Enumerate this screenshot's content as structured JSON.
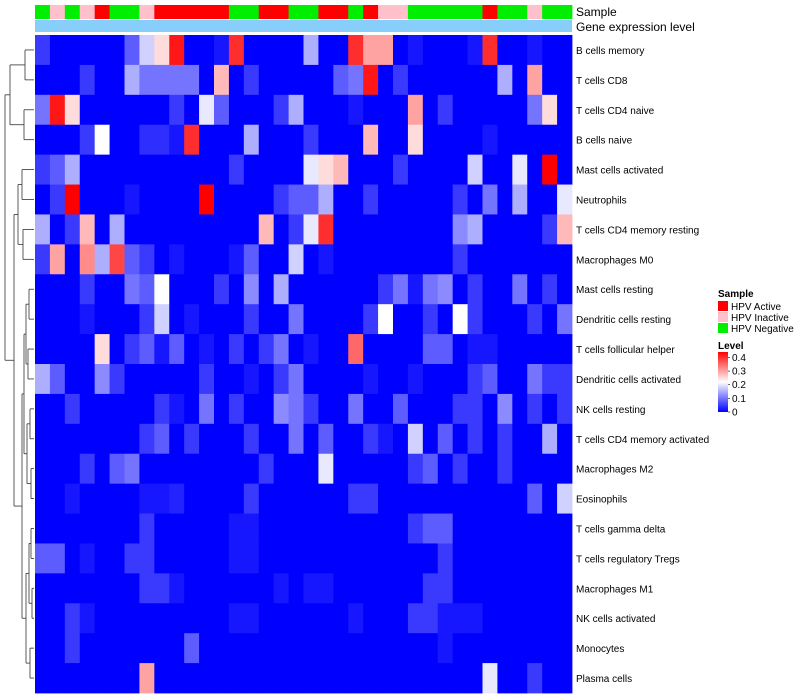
{
  "chart_data": {
    "type": "heatmap",
    "annotation_labels": [
      "Sample",
      "Gene expression level"
    ],
    "sample_groups": [
      "HPV Negative",
      "HPV Inactive",
      "HPV Negative",
      "HPV Inactive",
      "HPV Active",
      "HPV Negative",
      "HPV Negative",
      "HPV Inactive",
      "HPV Active",
      "HPV Active",
      "HPV Active",
      "HPV Active",
      "HPV Active",
      "HPV Negative",
      "HPV Negative",
      "HPV Active",
      "HPV Active",
      "HPV Negative",
      "HPV Negative",
      "HPV Active",
      "HPV Active",
      "HPV Negative",
      "HPV Active",
      "HPV Inactive",
      "HPV Inactive",
      "HPV Negative",
      "HPV Negative",
      "HPV Negative",
      "HPV Negative",
      "HPV Negative",
      "HPV Active",
      "HPV Negative",
      "HPV Negative",
      "HPV Inactive",
      "HPV Negative",
      "HPV Negative"
    ],
    "rows": [
      "B cells memory",
      "T cells CD8",
      "T cells CD4 naive",
      "B cells naive",
      "Mast cells activated",
      "Neutrophils",
      "T cells CD4 memory resting",
      "Macrophages M0",
      "Mast cells resting",
      "Dendritic cells resting",
      "T cells follicular helper",
      "Dendritic cells activated",
      "NK cells resting",
      "T cells CD4 memory activated",
      "Macrophages M2",
      "Eosinophils",
      "T cells gamma delta",
      "T cells regulatory  Tregs",
      "Macrophages M1",
      "NK cells activated",
      "Monocytes",
      "Plasma cells"
    ],
    "values": [
      [
        0.05,
        0.0,
        0.0,
        0.0,
        0.0,
        0.0,
        0.08,
        0.18,
        0.25,
        0.42,
        0.0,
        0.0,
        0.02,
        0.4,
        0.0,
        0.0,
        0.0,
        0.0,
        0.15,
        0.0,
        0.0,
        0.4,
        0.3,
        0.3,
        0.0,
        0.02,
        0.0,
        0.0,
        0.0,
        0.02,
        0.4,
        0.0,
        0.0,
        0.02,
        0.0,
        0.0
      ],
      [
        0.0,
        0.0,
        0.0,
        0.05,
        0.0,
        0.0,
        0.15,
        0.1,
        0.1,
        0.1,
        0.1,
        0.0,
        0.28,
        0.0,
        0.05,
        0.0,
        0.0,
        0.0,
        0.0,
        0.0,
        0.08,
        0.1,
        0.42,
        0.0,
        0.05,
        0.0,
        0.0,
        0.0,
        0.0,
        0.0,
        0.0,
        0.15,
        0.0,
        0.3,
        0.0,
        0.0
      ],
      [
        0.1,
        0.42,
        0.25,
        0.0,
        0.0,
        0.0,
        0.0,
        0.0,
        0.0,
        0.05,
        0.0,
        0.2,
        0.08,
        0.0,
        0.0,
        0.0,
        0.05,
        0.15,
        0.0,
        0.0,
        0.0,
        0.02,
        0.0,
        0.0,
        0.0,
        0.3,
        0.0,
        0.05,
        0.0,
        0.0,
        0.0,
        0.0,
        0.0,
        0.1,
        0.25,
        0.0
      ],
      [
        0.0,
        0.0,
        0.0,
        0.05,
        0.22,
        0.0,
        0.0,
        0.04,
        0.04,
        0.02,
        0.4,
        0.0,
        0.0,
        0.0,
        0.15,
        0.0,
        0.0,
        0.0,
        0.05,
        0.0,
        0.0,
        0.0,
        0.28,
        0.0,
        0.0,
        0.25,
        0.0,
        0.0,
        0.0,
        0.0,
        0.02,
        0.0,
        0.0,
        0.0,
        0.0,
        0.0
      ],
      [
        0.05,
        0.08,
        0.15,
        0.0,
        0.0,
        0.0,
        0.0,
        0.0,
        0.0,
        0.0,
        0.0,
        0.0,
        0.0,
        0.05,
        0.0,
        0.0,
        0.0,
        0.0,
        0.2,
        0.25,
        0.28,
        0.0,
        0.0,
        0.0,
        0.05,
        0.0,
        0.0,
        0.0,
        0.0,
        0.18,
        0.0,
        0.0,
        0.2,
        0.0,
        0.44,
        0.0
      ],
      [
        0.0,
        0.05,
        0.44,
        0.0,
        0.0,
        0.0,
        0.02,
        0.0,
        0.0,
        0.0,
        0.0,
        0.44,
        0.0,
        0.0,
        0.0,
        0.0,
        0.05,
        0.08,
        0.08,
        0.15,
        0.0,
        0.0,
        0.05,
        0.0,
        0.0,
        0.0,
        0.0,
        0.0,
        0.05,
        0.0,
        0.1,
        0.0,
        0.15,
        0.0,
        0.0,
        0.2
      ],
      [
        0.15,
        0.0,
        0.05,
        0.28,
        0.0,
        0.15,
        0.0,
        0.0,
        0.0,
        0.0,
        0.0,
        0.0,
        0.0,
        0.0,
        0.0,
        0.28,
        0.0,
        0.05,
        0.2,
        0.4,
        0.0,
        0.0,
        0.0,
        0.0,
        0.0,
        0.0,
        0.0,
        0.0,
        0.12,
        0.15,
        0.0,
        0.0,
        0.0,
        0.0,
        0.05,
        0.28
      ],
      [
        0.05,
        0.3,
        0.0,
        0.32,
        0.15,
        0.38,
        0.08,
        0.05,
        0.0,
        0.02,
        0.0,
        0.0,
        0.0,
        0.02,
        0.08,
        0.0,
        0.0,
        0.18,
        0.0,
        0.02,
        0.0,
        0.0,
        0.0,
        0.0,
        0.0,
        0.0,
        0.0,
        0.0,
        0.05,
        0.0,
        0.0,
        0.0,
        0.0,
        0.0,
        0.0,
        0.0
      ],
      [
        0.0,
        0.0,
        0.0,
        0.05,
        0.0,
        0.0,
        0.1,
        0.08,
        0.22,
        0.0,
        0.0,
        0.0,
        0.05,
        0.0,
        0.12,
        0.0,
        0.15,
        0.0,
        0.0,
        0.0,
        0.0,
        0.0,
        0.0,
        0.05,
        0.1,
        0.02,
        0.1,
        0.12,
        0.0,
        0.05,
        0.0,
        0.0,
        0.1,
        0.0,
        0.05,
        0.0
      ],
      [
        0.0,
        0.0,
        0.0,
        0.02,
        0.0,
        0.0,
        0.0,
        0.05,
        0.18,
        0.0,
        0.02,
        0.0,
        0.0,
        0.0,
        0.05,
        0.0,
        0.0,
        0.1,
        0.0,
        0.0,
        0.0,
        0.0,
        0.05,
        0.22,
        0.0,
        0.0,
        0.05,
        0.0,
        0.22,
        0.05,
        0.0,
        0.0,
        0.0,
        0.05,
        0.0,
        0.1
      ],
      [
        0.0,
        0.0,
        0.0,
        0.0,
        0.25,
        0.0,
        0.05,
        0.08,
        0.02,
        0.08,
        0.0,
        0.02,
        0.0,
        0.05,
        0.0,
        0.05,
        0.1,
        0.0,
        0.02,
        0.0,
        0.0,
        0.35,
        0.0,
        0.0,
        0.0,
        0.0,
        0.08,
        0.08,
        0.0,
        0.02,
        0.02,
        0.0,
        0.0,
        0.0,
        0.0,
        0.0
      ],
      [
        0.15,
        0.08,
        0.0,
        0.0,
        0.12,
        0.05,
        0.0,
        0.0,
        0.0,
        0.0,
        0.0,
        0.05,
        0.0,
        0.0,
        0.02,
        0.0,
        0.05,
        0.1,
        0.0,
        0.0,
        0.0,
        0.0,
        0.02,
        0.0,
        0.0,
        0.02,
        0.0,
        0.0,
        0.0,
        0.05,
        0.08,
        0.0,
        0.0,
        0.1,
        0.05,
        0.05
      ],
      [
        0.0,
        0.0,
        0.05,
        0.0,
        0.0,
        0.0,
        0.0,
        0.0,
        0.05,
        0.02,
        0.0,
        0.1,
        0.0,
        0.05,
        0.0,
        0.0,
        0.12,
        0.1,
        0.05,
        0.0,
        0.0,
        0.1,
        0.0,
        0.0,
        0.08,
        0.0,
        0.0,
        0.0,
        0.05,
        0.05,
        0.0,
        0.12,
        0.0,
        0.05,
        0.0,
        0.05
      ],
      [
        0.0,
        0.0,
        0.0,
        0.0,
        0.0,
        0.0,
        0.0,
        0.05,
        0.08,
        0.0,
        0.05,
        0.0,
        0.0,
        0.0,
        0.05,
        0.0,
        0.0,
        0.1,
        0.0,
        0.08,
        0.0,
        0.0,
        0.05,
        0.02,
        0.0,
        0.18,
        0.0,
        0.08,
        0.0,
        0.05,
        0.0,
        0.05,
        0.0,
        0.0,
        0.15,
        0.0
      ],
      [
        0.0,
        0.0,
        0.0,
        0.05,
        0.0,
        0.08,
        0.1,
        0.0,
        0.0,
        0.0,
        0.0,
        0.0,
        0.0,
        0.0,
        0.0,
        0.05,
        0.0,
        0.0,
        0.0,
        0.2,
        0.0,
        0.0,
        0.0,
        0.0,
        0.0,
        0.05,
        0.08,
        0.0,
        0.05,
        0.0,
        0.0,
        0.05,
        0.0,
        0.0,
        0.0,
        0.0
      ],
      [
        0.0,
        0.0,
        0.02,
        0.0,
        0.0,
        0.0,
        0.0,
        0.02,
        0.02,
        0.03,
        0.0,
        0.0,
        0.0,
        0.0,
        0.05,
        0.0,
        0.0,
        0.0,
        0.0,
        0.0,
        0.0,
        0.05,
        0.05,
        0.0,
        0.0,
        0.0,
        0.0,
        0.0,
        0.0,
        0.0,
        0.0,
        0.0,
        0.0,
        0.08,
        0.0,
        0.18
      ],
      [
        0.0,
        0.0,
        0.0,
        0.0,
        0.0,
        0.0,
        0.0,
        0.05,
        0.0,
        0.0,
        0.0,
        0.0,
        0.0,
        0.02,
        0.02,
        0.0,
        0.0,
        0.0,
        0.0,
        0.0,
        0.0,
        0.0,
        0.0,
        0.0,
        0.0,
        0.05,
        0.08,
        0.08,
        0.0,
        0.0,
        0.0,
        0.0,
        0.0,
        0.0,
        0.0,
        0.0
      ],
      [
        0.08,
        0.08,
        0.0,
        0.02,
        0.0,
        0.0,
        0.05,
        0.05,
        0.0,
        0.0,
        0.0,
        0.0,
        0.0,
        0.02,
        0.02,
        0.0,
        0.0,
        0.0,
        0.0,
        0.0,
        0.0,
        0.0,
        0.0,
        0.0,
        0.0,
        0.0,
        0.0,
        0.05,
        0.0,
        0.0,
        0.0,
        0.0,
        0.0,
        0.0,
        0.0,
        0.0
      ],
      [
        0.0,
        0.0,
        0.0,
        0.0,
        0.0,
        0.0,
        0.0,
        0.05,
        0.05,
        0.02,
        0.0,
        0.0,
        0.0,
        0.0,
        0.0,
        0.0,
        0.02,
        0.0,
        0.02,
        0.02,
        0.0,
        0.0,
        0.0,
        0.0,
        0.0,
        0.0,
        0.05,
        0.05,
        0.0,
        0.0,
        0.0,
        0.0,
        0.0,
        0.0,
        0.0,
        0.0
      ],
      [
        0.0,
        0.0,
        0.05,
        0.02,
        0.0,
        0.0,
        0.0,
        0.0,
        0.0,
        0.0,
        0.0,
        0.0,
        0.0,
        0.02,
        0.02,
        0.0,
        0.0,
        0.0,
        0.0,
        0.0,
        0.0,
        0.02,
        0.0,
        0.0,
        0.0,
        0.05,
        0.05,
        0.02,
        0.02,
        0.02,
        0.0,
        0.0,
        0.0,
        0.0,
        0.0,
        0.0
      ],
      [
        0.0,
        0.0,
        0.05,
        0.0,
        0.0,
        0.0,
        0.0,
        0.0,
        0.0,
        0.0,
        0.08,
        0.0,
        0.0,
        0.0,
        0.0,
        0.0,
        0.0,
        0.0,
        0.0,
        0.0,
        0.0,
        0.0,
        0.0,
        0.0,
        0.0,
        0.0,
        0.0,
        0.02,
        0.0,
        0.0,
        0.0,
        0.0,
        0.0,
        0.0,
        0.0,
        0.0
      ],
      [
        0.0,
        0.0,
        0.0,
        0.0,
        0.0,
        0.0,
        0.0,
        0.3,
        0.0,
        0.0,
        0.0,
        0.0,
        0.0,
        0.0,
        0.0,
        0.0,
        0.0,
        0.0,
        0.0,
        0.0,
        0.0,
        0.0,
        0.0,
        0.0,
        0.0,
        0.0,
        0.0,
        0.0,
        0.0,
        0.0,
        0.2,
        0.0,
        0.0,
        0.05,
        0.0,
        0.0
      ]
    ],
    "legend": {
      "sample_title": "Sample",
      "sample_entries": [
        {
          "label": "HPV Active",
          "color": "#ff0000"
        },
        {
          "label": "HPV Inactive",
          "color": "#ffc0cb"
        },
        {
          "label": "HPV Negative",
          "color": "#00ee00"
        }
      ],
      "level_title": "Level",
      "level_ticks": [
        "0",
        "0.1",
        "0.2",
        "0.3",
        "0.4"
      ],
      "level_tick_values": [
        0,
        0.1,
        0.2,
        0.3,
        0.4
      ],
      "level_range": [
        0,
        0.44
      ]
    },
    "colors": {
      "low": "#0000ff",
      "mid": "#ffffff",
      "high": "#ff0000",
      "expression_bar": "#87cefa"
    }
  }
}
